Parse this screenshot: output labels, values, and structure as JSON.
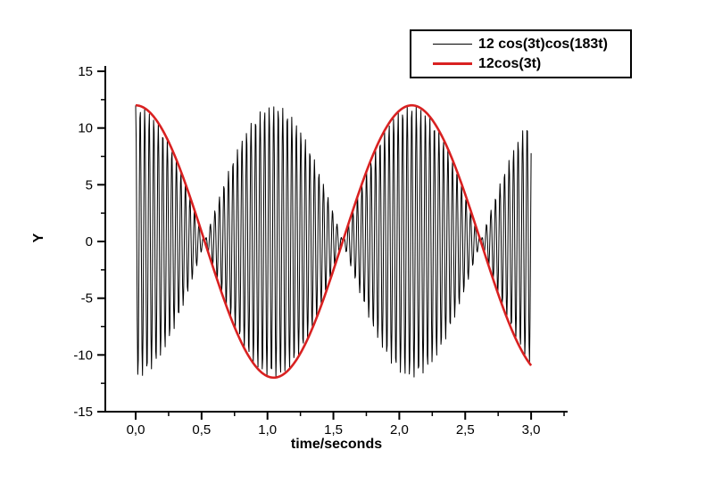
{
  "chart_data": {
    "type": "line",
    "title": "",
    "background": "#ffffff",
    "axis_color": "#000000",
    "grid": false,
    "x_axis": {
      "label": "time/seconds",
      "range": [
        -0.23,
        3.27
      ],
      "major_ticks": [
        0,
        0.5,
        1.0,
        1.5,
        2.0,
        2.5,
        3.0
      ],
      "tick_labels": [
        "0,0",
        "0,5",
        "1,0",
        "1,5",
        "2,0",
        "2,5",
        "3,0"
      ],
      "minor_ticks": [
        0.25,
        0.75,
        1.25,
        1.75,
        2.25,
        2.75,
        3.25
      ]
    },
    "y_axis": {
      "label": "Y",
      "range": [
        -15,
        15.5
      ],
      "major_ticks": [
        15,
        10,
        5,
        0,
        -5,
        -10,
        -15
      ],
      "tick_labels": [
        "15",
        "10",
        "5",
        "0",
        "-5",
        "-10",
        "-15"
      ],
      "minor_ticks": [
        12.5,
        7.5,
        2.5,
        -2.5,
        -7.5,
        -12.5
      ]
    },
    "series": [
      {
        "name": "12 cos(3t)cos(183t)",
        "color": "#000000",
        "amplitude": 12,
        "envelope_omega": 3,
        "carrier_omega": 183,
        "t_start": 0,
        "t_end": 3,
        "sample_step": 0.004,
        "line_width": 1
      },
      {
        "name": "12cos(3t)",
        "color": "#d92121",
        "amplitude": 12,
        "envelope_omega": 3,
        "carrier_omega": null,
        "t_start": 0,
        "t_end": 3,
        "sample_step": 0.01,
        "line_width": 2.6
      }
    ],
    "legend": {
      "position": "top-right",
      "entries": [
        {
          "label": "12 cos(3t)cos(183t)",
          "color": "#000000",
          "line_width": 1
        },
        {
          "label": "12cos(3t)",
          "color": "#d92121",
          "line_width": 3
        }
      ]
    }
  }
}
